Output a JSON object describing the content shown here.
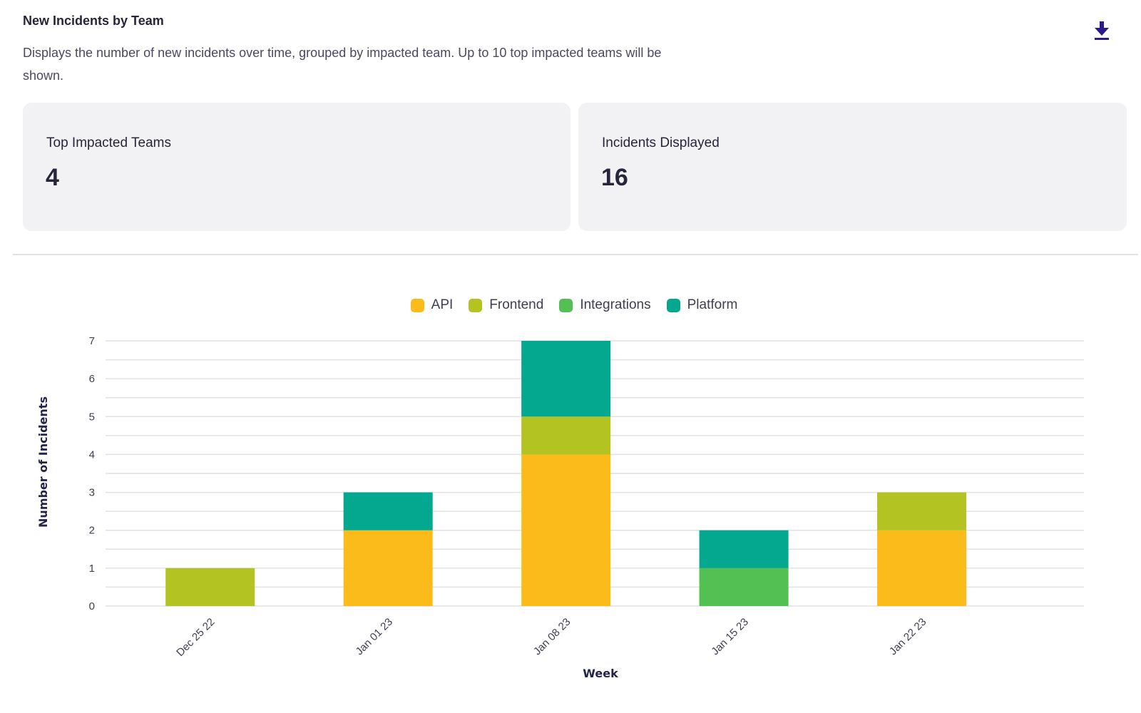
{
  "header": {
    "title": "New Incidents by Team",
    "description": "Displays the number of new incidents over time, grouped by impacted team. Up to 10 top impacted teams will be shown.",
    "download_icon": "download-icon"
  },
  "cards": [
    {
      "label": "Top Impacted Teams",
      "value": "4"
    },
    {
      "label": "Incidents Displayed",
      "value": "16"
    }
  ],
  "colors": {
    "API": "#fbbb1a",
    "Frontend": "#b3c321",
    "Integrations": "#52c053",
    "Platform": "#03a88f",
    "accent": "#2a1a8a"
  },
  "chart_data": {
    "type": "bar",
    "stacked": true,
    "categories": [
      "Dec 25 22",
      "Jan 01 23",
      "Jan 08 23",
      "Jan 15 23",
      "Jan 22 23"
    ],
    "series": [
      {
        "name": "API",
        "values": [
          0,
          2,
          4,
          0,
          2
        ]
      },
      {
        "name": "Frontend",
        "values": [
          1,
          0,
          1,
          0,
          1
        ]
      },
      {
        "name": "Integrations",
        "values": [
          0,
          0,
          0,
          1,
          0
        ]
      },
      {
        "name": "Platform",
        "values": [
          0,
          1,
          2,
          1,
          0
        ]
      }
    ],
    "xlabel": "Week",
    "ylabel": "Number of Incidents",
    "yticks": [
      0,
      1,
      2,
      3,
      4,
      5,
      6,
      7
    ],
    "ylim": [
      0,
      7
    ],
    "legend_position": "top-center",
    "grid": true
  }
}
